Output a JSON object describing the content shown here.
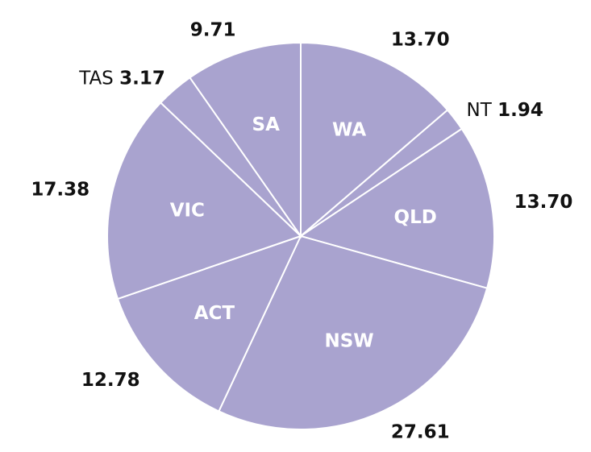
{
  "chart_data": {
    "type": "pie",
    "categories": [
      "WA",
      "NT",
      "QLD",
      "NSW",
      "ACT",
      "VIC",
      "TAS",
      "SA"
    ],
    "values": [
      13.7,
      1.94,
      13.7,
      27.61,
      12.78,
      17.38,
      3.17,
      9.71
    ],
    "value_labels": [
      "13.70",
      "1.94",
      "13.70",
      "27.61",
      "12.78",
      "17.38",
      "3.17",
      "9.71"
    ],
    "color": "#a9a3cf"
  }
}
